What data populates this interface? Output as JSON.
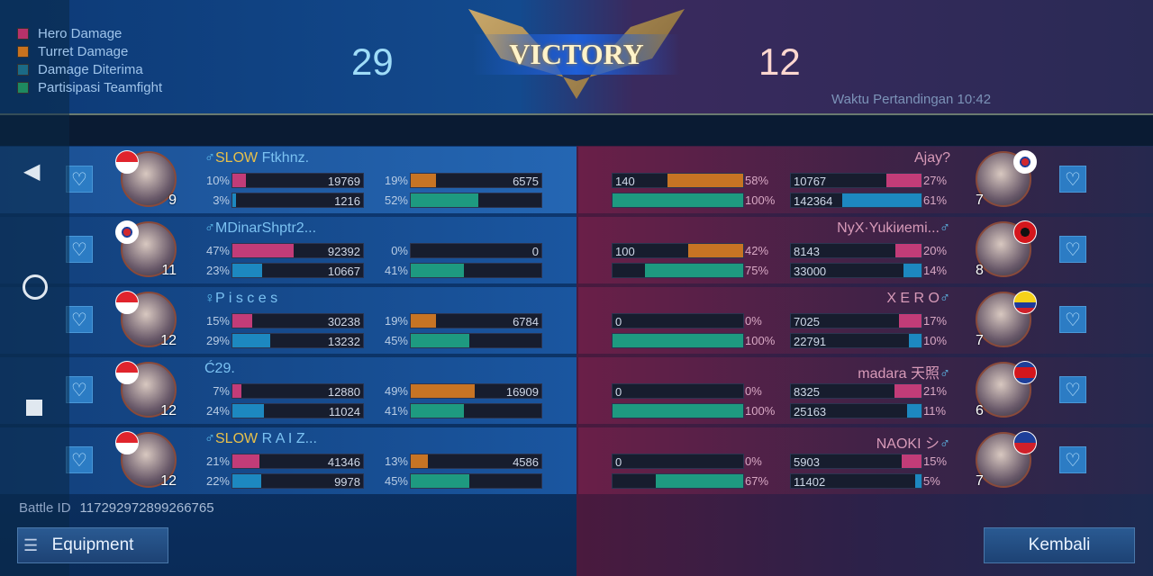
{
  "legend": [
    {
      "label": "Hero Damage",
      "color": "#b8326a"
    },
    {
      "label": "Turret Damage",
      "color": "#c8721e"
    },
    {
      "label": "Damage Diterima",
      "color": "#1b6a86"
    },
    {
      "label": "Partisipasi Teamfight",
      "color": "#1e8a60"
    }
  ],
  "colors": {
    "hero": "#c23c78",
    "turret": "#c77424",
    "taken": "#1d88c0",
    "teamfight": "#1e9a80"
  },
  "header": {
    "left_score": "29",
    "right_score": "12",
    "result": "VICTORY",
    "match_time": "Waktu Pertandingan 10:42"
  },
  "left_team": [
    {
      "name_prefix": "♂",
      "tag": "SLOW",
      "name": " Ftkhnz.",
      "level": "9",
      "flag": "indonesia",
      "hero": {
        "value": "19769",
        "pct": "10%"
      },
      "turret": {
        "value": "6575",
        "pct": "19%"
      },
      "taken": {
        "value": "1216",
        "pct": "3%"
      },
      "teamfight": {
        "value": "",
        "pct": "52%"
      }
    },
    {
      "name_prefix": "♂",
      "tag": "",
      "name": "MDinarShptr2...",
      "level": "11",
      "flag": "south-korea",
      "hero": {
        "value": "92392",
        "pct": "47%"
      },
      "turret": {
        "value": "0",
        "pct": "0%"
      },
      "taken": {
        "value": "10667",
        "pct": "23%"
      },
      "teamfight": {
        "value": "",
        "pct": "41%"
      }
    },
    {
      "name_prefix": "♀",
      "tag": "",
      "name": "P i s c e s",
      "level": "12",
      "flag": "indonesia",
      "hero": {
        "value": "30238",
        "pct": "15%"
      },
      "turret": {
        "value": "6784",
        "pct": "19%"
      },
      "taken": {
        "value": "13232",
        "pct": "29%"
      },
      "teamfight": {
        "value": "",
        "pct": "45%"
      }
    },
    {
      "name_prefix": "",
      "tag": "",
      "name": "Ć29.",
      "level": "12",
      "flag": "indonesia",
      "hero": {
        "value": "12880",
        "pct": "7%"
      },
      "turret": {
        "value": "16909",
        "pct": "49%"
      },
      "taken": {
        "value": "11024",
        "pct": "24%"
      },
      "teamfight": {
        "value": "",
        "pct": "41%"
      }
    },
    {
      "name_prefix": "♂",
      "tag": "SLOW",
      "name": " R A I Z...",
      "level": "12",
      "flag": "indonesia",
      "hero": {
        "value": "41346",
        "pct": "21%"
      },
      "turret": {
        "value": "4586",
        "pct": "13%"
      },
      "taken": {
        "value": "9978",
        "pct": "22%"
      },
      "teamfight": {
        "value": "",
        "pct": "45%"
      }
    }
  ],
  "right_team": [
    {
      "name": "Ajay?",
      "name_suffix": "",
      "level": "7",
      "flag": "south-korea",
      "turret": {
        "value": "140",
        "pct": "58%"
      },
      "teamfight": {
        "value": "",
        "pct": "100%"
      },
      "hero": {
        "value": "10767",
        "pct": "27%"
      },
      "taken": {
        "value": "142364",
        "pct": "61%"
      }
    },
    {
      "name": "NyX·Yukiиemi...",
      "name_suffix": "♂",
      "level": "8",
      "flag": "albania",
      "turret": {
        "value": "100",
        "pct": "42%"
      },
      "teamfight": {
        "value": "",
        "pct": "75%"
      },
      "hero": {
        "value": "8143",
        "pct": "20%"
      },
      "taken": {
        "value": "33000",
        "pct": "14%"
      }
    },
    {
      "name": "X E R O",
      "name_suffix": "♂",
      "level": "7",
      "flag": "colombia",
      "turret": {
        "value": "0",
        "pct": "0%"
      },
      "teamfight": {
        "value": "",
        "pct": "100%"
      },
      "hero": {
        "value": "7025",
        "pct": "17%"
      },
      "taken": {
        "value": "22791",
        "pct": "10%"
      }
    },
    {
      "name": "madara 天照",
      "name_suffix": "♂",
      "level": "6",
      "flag": "cambodia",
      "turret": {
        "value": "0",
        "pct": "0%"
      },
      "teamfight": {
        "value": "",
        "pct": "100%"
      },
      "hero": {
        "value": "8325",
        "pct": "21%"
      },
      "taken": {
        "value": "25163",
        "pct": "11%"
      }
    },
    {
      "name": "NAOKI シ",
      "name_suffix": "♂",
      "level": "7",
      "flag": "philippines",
      "turret": {
        "value": "0",
        "pct": "0%"
      },
      "teamfight": {
        "value": "",
        "pct": "67%"
      },
      "hero": {
        "value": "5903",
        "pct": "15%"
      },
      "taken": {
        "value": "11402",
        "pct": "5%"
      }
    }
  ],
  "footer": {
    "battle_id_label": "Battle ID",
    "battle_id": "117292972899266765",
    "equipment_label": "Equipment",
    "back_label": "Kembali"
  }
}
